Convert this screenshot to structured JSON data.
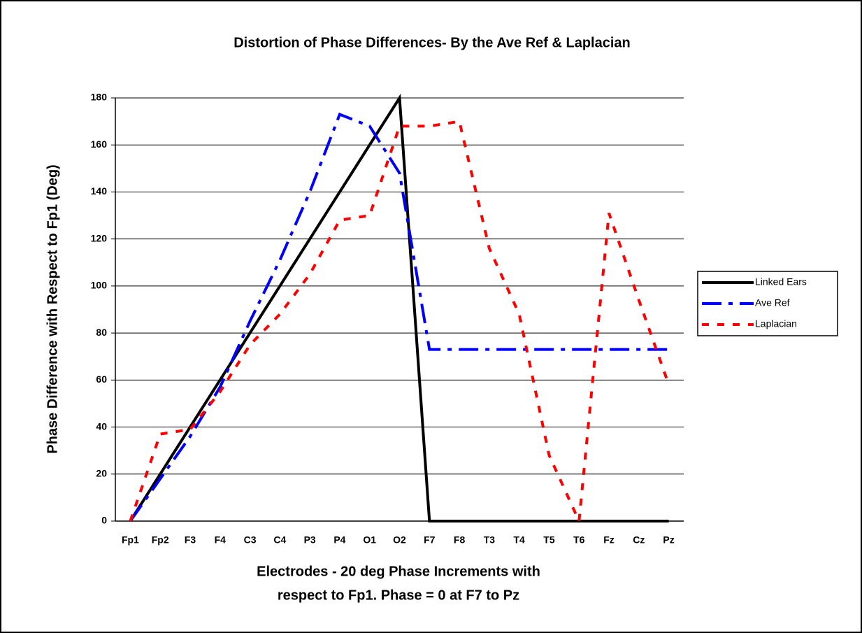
{
  "chart_data": {
    "type": "line",
    "title": "Distortion of Phase Differences- By the Ave Ref & Laplacian",
    "x_label": [
      "Electrodes - 20 deg Phase Increments with",
      "respect to Fp1.  Phase = 0 at F7 to Pz"
    ],
    "y_label": "Phase Difference with Respect to Fp1 (Deg)",
    "categories": [
      "Fp1",
      "Fp2",
      "F3",
      "F4",
      "C3",
      "C4",
      "P3",
      "P4",
      "O1",
      "O2",
      "F7",
      "F8",
      "T3",
      "T4",
      "T5",
      "T6",
      "Fz",
      "Cz",
      "Pz"
    ],
    "series": [
      {
        "name": "Linked Ears",
        "color": "#000000",
        "values": [
          0,
          20,
          40,
          60,
          80,
          100,
          120,
          140,
          160,
          180,
          0,
          0,
          0,
          0,
          0,
          0,
          0,
          0,
          0
        ]
      },
      {
        "name": "Ave Ref",
        "color": "#0000ff",
        "values": [
          0,
          18,
          36,
          57,
          85,
          111,
          140,
          173,
          168,
          148,
          73,
          73,
          73,
          73,
          73,
          73,
          73,
          73,
          73
        ]
      },
      {
        "name": "Laplacian",
        "color": "#ff0000",
        "values": [
          0,
          37,
          39,
          55,
          75,
          88,
          105,
          128,
          130,
          168,
          168,
          170,
          116,
          88,
          28,
          0,
          131,
          94,
          58
        ]
      }
    ],
    "ylim": [
      0,
      180
    ],
    "yticks": [
      0,
      20,
      40,
      60,
      80,
      100,
      120,
      140,
      160,
      180
    ],
    "grid": true,
    "legend": "right"
  }
}
